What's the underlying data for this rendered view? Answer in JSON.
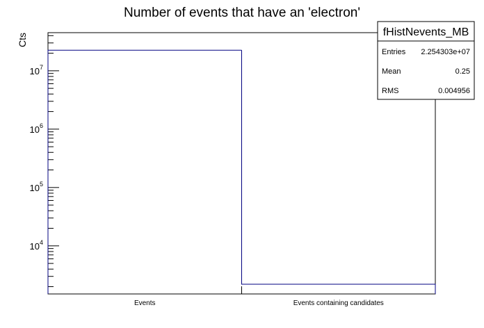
{
  "chart_data": {
    "type": "bar",
    "title": "Number of events that have an 'electron'",
    "xlabel": "",
    "ylabel": "Cts",
    "yscale": "log",
    "ylim": [
      1500,
      45000000
    ],
    "categories": [
      "Events",
      "Events containing candidates"
    ],
    "values": [
      22540000,
      2200
    ],
    "ytick_labels": [
      {
        "base": "10",
        "exp": "4",
        "value": 10000
      },
      {
        "base": "10",
        "exp": "5",
        "value": 100000
      },
      {
        "base": "10",
        "exp": "6",
        "value": 1000000
      },
      {
        "base": "10",
        "exp": "7",
        "value": 10000000
      }
    ],
    "line_color": "#000080",
    "grid": false,
    "stats_box": {
      "placement": "top-right",
      "name": "fHistNevents_MB",
      "rows": [
        {
          "label": "Entries",
          "value": "2.254303e+07"
        },
        {
          "label": "Mean",
          "value": "0.25"
        },
        {
          "label": "RMS",
          "value": "0.004956"
        }
      ]
    }
  }
}
